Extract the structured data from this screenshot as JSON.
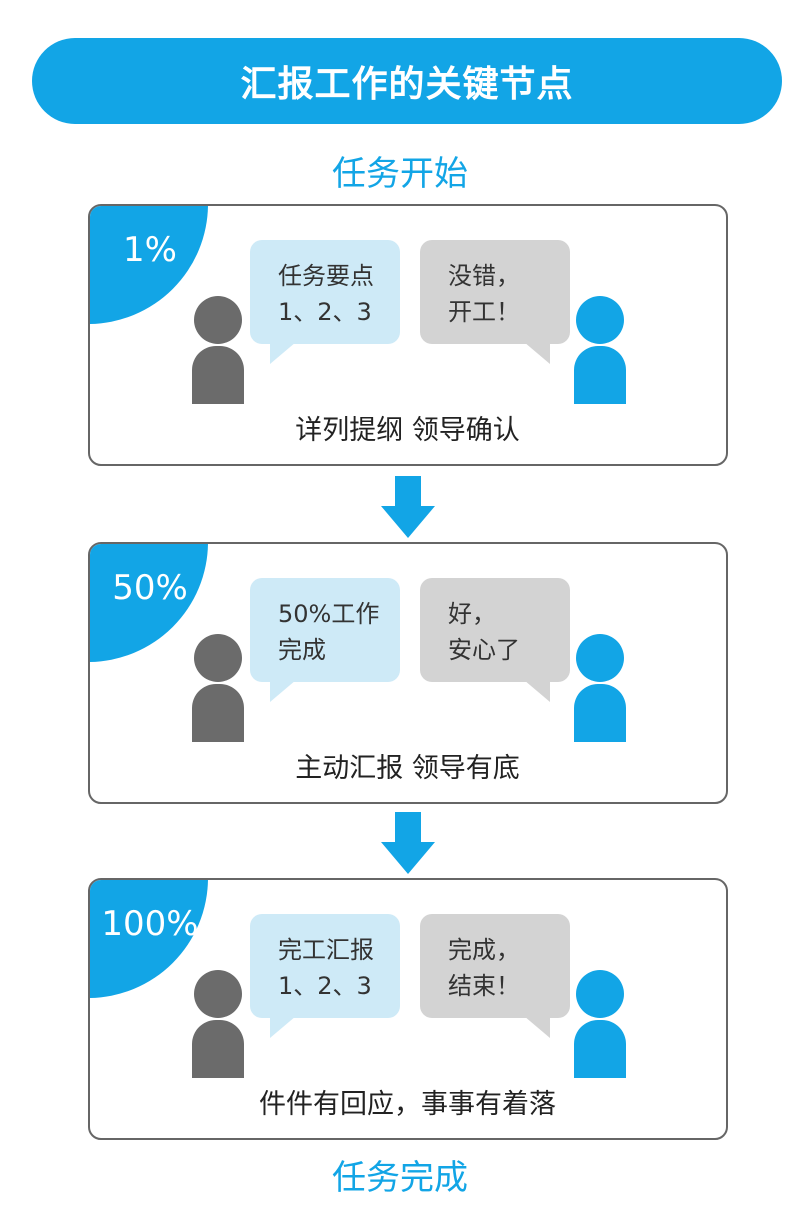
{
  "title": "汇报工作的关键节点",
  "start_label": "任务开始",
  "end_label": "任务完成",
  "colors": {
    "accent": "#12a5e6",
    "left_bubble": "#ceeaf7",
    "right_bubble": "#d3d3d3",
    "person_left": "#6b6b6b"
  },
  "stages": [
    {
      "percent": "1%",
      "left_bubble": [
        "任务要点",
        "1、2、3"
      ],
      "right_bubble": [
        "没错，",
        "开工！"
      ],
      "summary": "详列提纲 领导确认"
    },
    {
      "percent": "50%",
      "left_bubble": [
        "50%工作",
        "完成"
      ],
      "right_bubble": [
        "好，",
        "安心了"
      ],
      "summary": "主动汇报 领导有底"
    },
    {
      "percent": "100%",
      "left_bubble": [
        "完工汇报",
        "1、2、3"
      ],
      "right_bubble": [
        "完成，",
        "结束！"
      ],
      "summary": "件件有回应，事事有着落"
    }
  ]
}
